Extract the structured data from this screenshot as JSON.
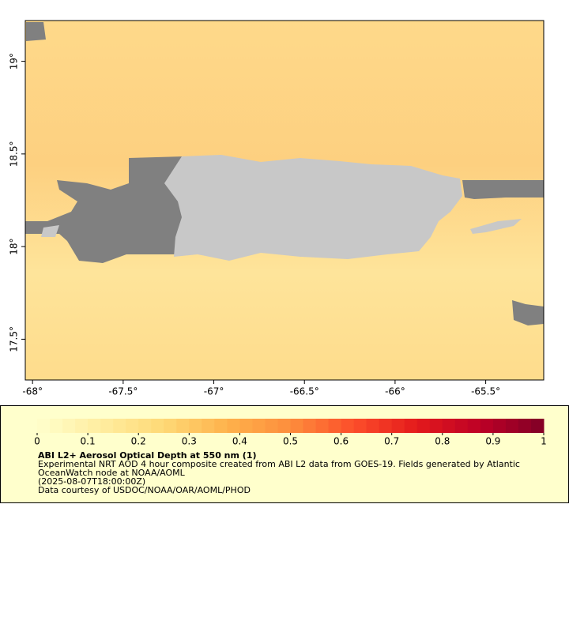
{
  "chart_data": {
    "type": "map",
    "xlim": [
      -68.04,
      -65.18
    ],
    "ylim": [
      17.28,
      19.22
    ],
    "xticks": [
      {
        "value": -68,
        "label": "-68°"
      },
      {
        "value": -67.5,
        "label": "-67.5°"
      },
      {
        "value": -67,
        "label": "-67°"
      },
      {
        "value": -66.5,
        "label": "-66.5°"
      },
      {
        "value": -66,
        "label": "-66°"
      },
      {
        "value": -65.5,
        "label": "-65.5°"
      }
    ],
    "yticks": [
      {
        "value": 17.5,
        "label": "17.5°"
      },
      {
        "value": 18,
        "label": "18°"
      },
      {
        "value": 18.5,
        "label": "18.5°"
      },
      {
        "value": 19,
        "label": "19°"
      }
    ],
    "colorbar": {
      "lim": [
        0,
        1
      ],
      "ticks": [
        0,
        0.1,
        0.2,
        0.3,
        0.4,
        0.5,
        0.6,
        0.7,
        0.8,
        0.9,
        1
      ],
      "colorscale": [
        "#ffffcc",
        "#ffeda0",
        "#fed976",
        "#feb24c",
        "#fd8d3c",
        "#fc4e2a",
        "#e31a1c",
        "#bd0026",
        "#800026"
      ],
      "steps": 40
    },
    "title": "ABI L2+ Aerosol Optical Depth at 550 nm (1)",
    "description": [
      "Experimental NRT AOD 4 hour composite created from ABI L2 data from GOES-19. Fields generated by Atlantic",
      "OceanWatch node at NOAA/AOML",
      "(2025-08-07T18:00:00Z)",
      "Data courtesy of USDOC/NOAA/OAR/AOML/PHOD"
    ]
  }
}
